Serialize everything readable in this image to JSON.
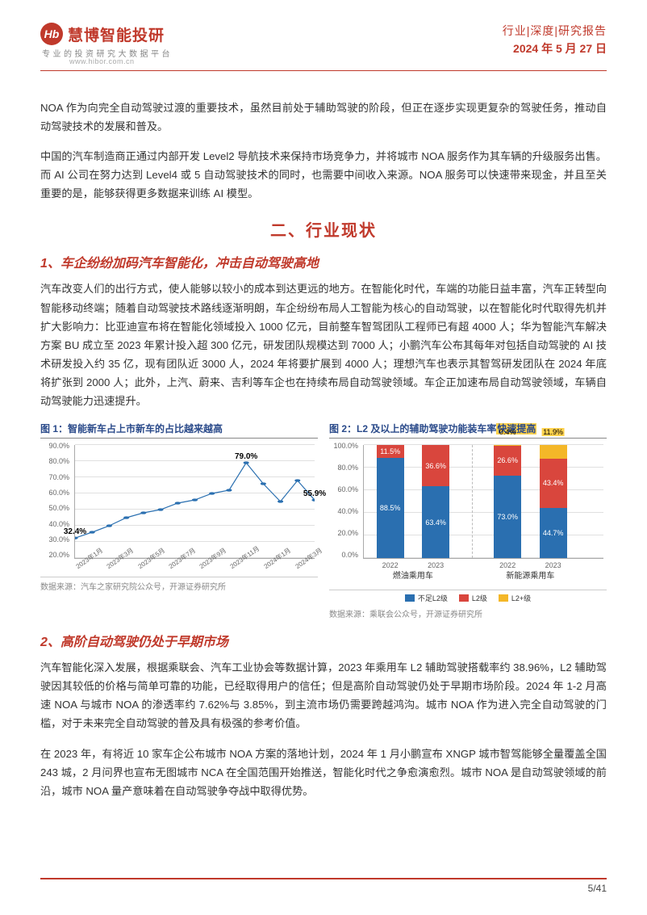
{
  "header": {
    "logo_badge": "Hb",
    "logo_text": "慧博智能投研",
    "logo_sub": "专业的投资研究大数据平台",
    "logo_url": "www.hibor.com.cn",
    "category": "行业|深度|研究报告",
    "date": "2024 年 5 月 27 日"
  },
  "body": {
    "p1": "NOA 作为向完全自动驾驶过渡的重要技术，虽然目前处于辅助驾驶的阶段，但正在逐步实现更复杂的驾驶任务，推动自动驾驶技术的发展和普及。",
    "p2": "中国的汽车制造商正通过内部开发 Level2 导航技术来保持市场竞争力，并将城市 NOA 服务作为其车辆的升级服务出售。而 AI 公司在努力达到 Level4 或 5 自动驾驶技术的同时，也需要中间收入来源。NOA 服务可以快速带来现金，并且至关重要的是，能够获得更多数据来训练 AI 模型。",
    "section2_title": "二、行业现状",
    "sub1_title": "1、车企纷纷加码汽车智能化，冲击自动驾驶高地",
    "sub1_p1": "汽车改变人们的出行方式，使人能够以较小的成本到达更远的地方。在智能化时代，车端的功能日益丰富，汽车正转型向智能移动终端；随着自动驾驶技术路线逐渐明朗，车企纷纷布局人工智能为核心的自动驾驶，以在智能化时代取得先机并扩大影响力：比亚迪宣布将在智能化领域投入 1000 亿元，目前整车智驾团队工程师已有超 4000 人；华为智能汽车解决方案 BU 成立至 2023 年累计投入超 300 亿元，研发团队规模达到 7000 人；小鹏汽车公布其每年对包括自动驾驶的 AI 技术研发投入约 35 亿，现有团队近 3000 人，2024 年将要扩展到 4000 人；理想汽车也表示其智驾研发团队在 2024 年底将扩张到 2000 人；此外，上汽、蔚来、吉利等车企也在持续布局自动驾驶领域。车企正加速布局自动驾驶领域，车辆自动驾驶能力迅速提升。",
    "sub2_title": "2、高阶自动驾驶仍处于早期市场",
    "sub2_p1": "汽车智能化深入发展，根据乘联会、汽车工业协会等数据计算，2023 年乘用车 L2 辅助驾驶搭载率约 38.96%，L2 辅助驾驶因其较低的价格与简单可靠的功能，已经取得用户的信任；但是高阶自动驾驶仍处于早期市场阶段。2024 年 1-2 月高速 NOA 与城市 NOA 的渗透率约 7.62%与 3.85%，到主流市场仍需要跨越鸿沟。城市 NOA 作为进入完全自动驾驶的门槛，对于未来完全自动驾驶的普及具有极强的参考价值。",
    "sub2_p2": "在 2023 年，有将近 10 家车企公布城市 NOA 方案的落地计划，2024 年 1 月小鹏宣布 XNGP 城市智驾能够全量覆盖全国 243 城，2 月问界也宣布无图城市 NCA 在全国范围开始推送，智能化时代之争愈演愈烈。城市 NOA 是自动驾驶领域的前沿，城市 NOA 量产意味着在自动驾驶争夺战中取得优势。"
  },
  "chart1": {
    "title": "图 1：智能新车占上市新车的占比越来越高",
    "type": "line",
    "x_labels": [
      "2023年1月",
      "2023年3月",
      "2023年5月",
      "2023年7月",
      "2023年9月",
      "2023年11月",
      "2024年1月",
      "2024年3月"
    ],
    "values": [
      32.4,
      36,
      40,
      45,
      48,
      50,
      54,
      56,
      60,
      62,
      79.0,
      66,
      55,
      68,
      55.9
    ],
    "labeled_points": {
      "0": "32.4%",
      "10": "79.0%",
      "14": "55.9%"
    },
    "ymin": 20,
    "ymax": 90,
    "ystep": 10,
    "line_color": "#2a6fb0",
    "marker_color": "#2a6fb0",
    "label_color": "#000000",
    "grid_color": "#e0e0e0",
    "axis_fontsize": 9,
    "source": "数据来源：汽车之家研究院公众号，开源证券研究所"
  },
  "chart2": {
    "title_pre": "图 2：L2 及以上的辅助驾驶功能装车率",
    "title_hl": "快速提高",
    "type": "stacked_bar",
    "ymin": 0,
    "ymax": 100,
    "ystep": 20,
    "groups": [
      {
        "cat": "燃油乘用车",
        "bars": [
          {
            "x": "2022",
            "segs": [
              {
                "k": "不足L2级",
                "v": 88.5,
                "c": "#2a6fb0"
              },
              {
                "k": "L2级",
                "v": 11.5,
                "c": "#d9463d",
                "label": "11.5%"
              }
            ]
          },
          {
            "x": "2023",
            "segs": [
              {
                "k": "不足L2级",
                "v": 63.4,
                "c": "#2a6fb0"
              },
              {
                "k": "L2级",
                "v": 36.6,
                "c": "#d9463d",
                "label": "36.6%"
              }
            ]
          }
        ]
      },
      {
        "cat": "新能源乘用车",
        "bars": [
          {
            "x": "2022",
            "segs": [
              {
                "k": "不足L2级",
                "v": 73.0,
                "c": "#2a6fb0"
              },
              {
                "k": "L2级",
                "v": 26.6,
                "c": "#d9463d",
                "label": "26.6%"
              },
              {
                "k": "L2+级",
                "v": 0.4,
                "c": "#f4b728",
                "label": "0.4%"
              }
            ]
          },
          {
            "x": "2023",
            "segs": [
              {
                "k": "不足L2级",
                "v": 44.7,
                "c": "#2a6fb0"
              },
              {
                "k": "L2级",
                "v": 43.4,
                "c": "#d9463d",
                "label": "43.4%"
              },
              {
                "k": "L2+级",
                "v": 11.9,
                "c": "#f4b728",
                "label": "11.9%",
                "label_hl": true
              }
            ]
          }
        ]
      }
    ],
    "in_bar_labels": {
      "0": "88.5%",
      "1": "63.4%",
      "2": "73.0%",
      "3": "44.7%"
    },
    "legend": [
      {
        "label": "不足L2级",
        "color": "#2a6fb0"
      },
      {
        "label": "L2级",
        "color": "#d9463d"
      },
      {
        "label": "L2+级",
        "color": "#f4b728"
      }
    ],
    "grid_color": "#e0e0e0",
    "source": "数据来源：乘联会公众号，开源证券研究所"
  },
  "footer": {
    "page": "5/41"
  }
}
